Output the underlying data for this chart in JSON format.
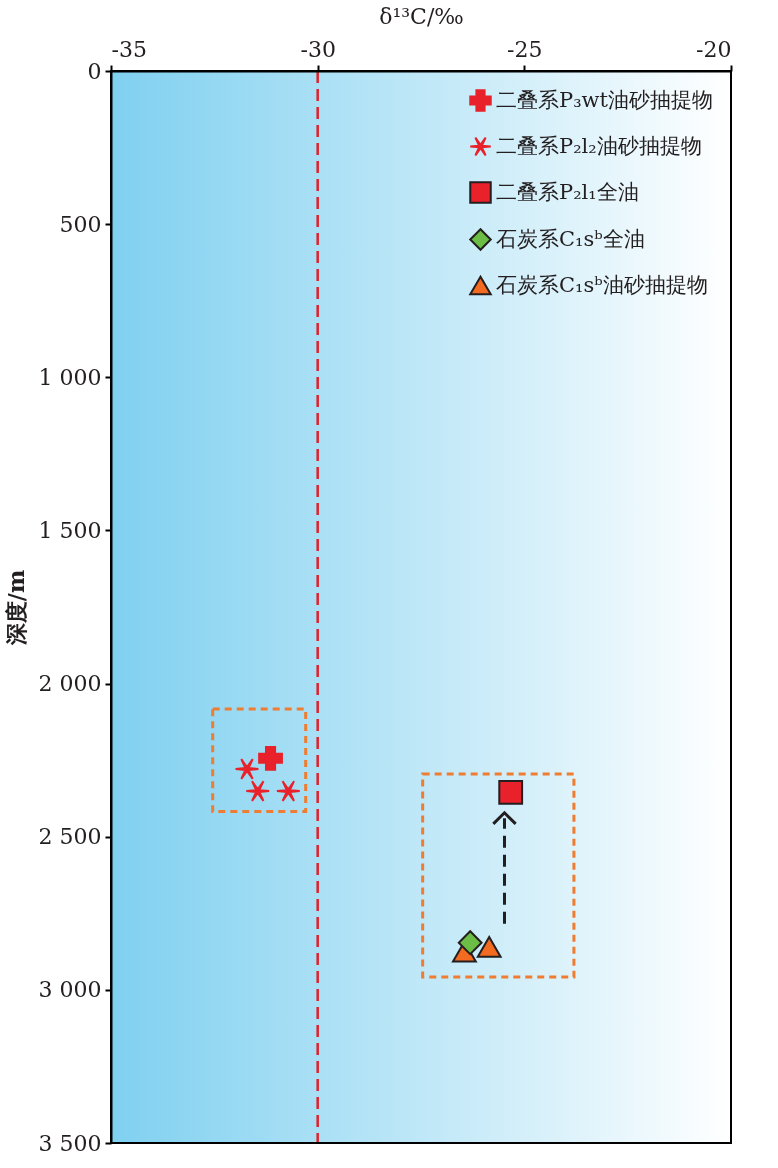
{
  "chart_data": {
    "type": "scatter",
    "xlabel": "δ¹³C/‰",
    "ylabel": "深度/m",
    "xlim": [
      -35,
      -20
    ],
    "xticks": [
      -35,
      -30,
      -25,
      -20
    ],
    "ylim": [
      3500,
      0
    ],
    "yticks": [
      0,
      500,
      {
        "value": 1000,
        "label": "1 000"
      },
      {
        "value": 1500,
        "label": "1 500"
      },
      {
        "value": 2000,
        "label": "2 000"
      },
      {
        "value": 2500,
        "label": "2 500"
      },
      {
        "value": 3000,
        "label": "3 000"
      },
      {
        "value": 3500,
        "label": "3 500"
      }
    ],
    "grid": false,
    "legend": "top right",
    "ref_lines": [
      {
        "axis": "x",
        "value": -30,
        "color": "#e0202a",
        "line_style": "dashed"
      }
    ],
    "series": [
      {
        "name": "二叠系P₃wt油砂抽提物",
        "color": "#e8212a",
        "marker": "cross",
        "x": [
          -31.14
        ],
        "values": [
          2244
        ]
      },
      {
        "name": "二叠系P₂l₂油砂抽提物",
        "color": "#e8212a",
        "marker": "cross",
        "x": [
          -31.71,
          -31.45,
          -30.71
        ],
        "values": [
          2279,
          2351,
          2351
        ]
      },
      {
        "name": "二叠系P₂l₁全油",
        "color": "#e8212a",
        "marker": "square",
        "x": [
          -25.33
        ],
        "values": [
          2355
        ]
      },
      {
        "name": "石炭系C₁sᵇ全油",
        "color": "#6bbd45",
        "marker": "diamond",
        "x": [
          -26.31
        ],
        "values": [
          2846
        ]
      },
      {
        "name": "石炭系C₁sᵇ油砂抽提物",
        "color": "#f26b21",
        "marker": "triangle",
        "x": [
          -26.45,
          -25.85
        ],
        "values": [
          2875,
          2860
        ]
      }
    ]
  }
}
